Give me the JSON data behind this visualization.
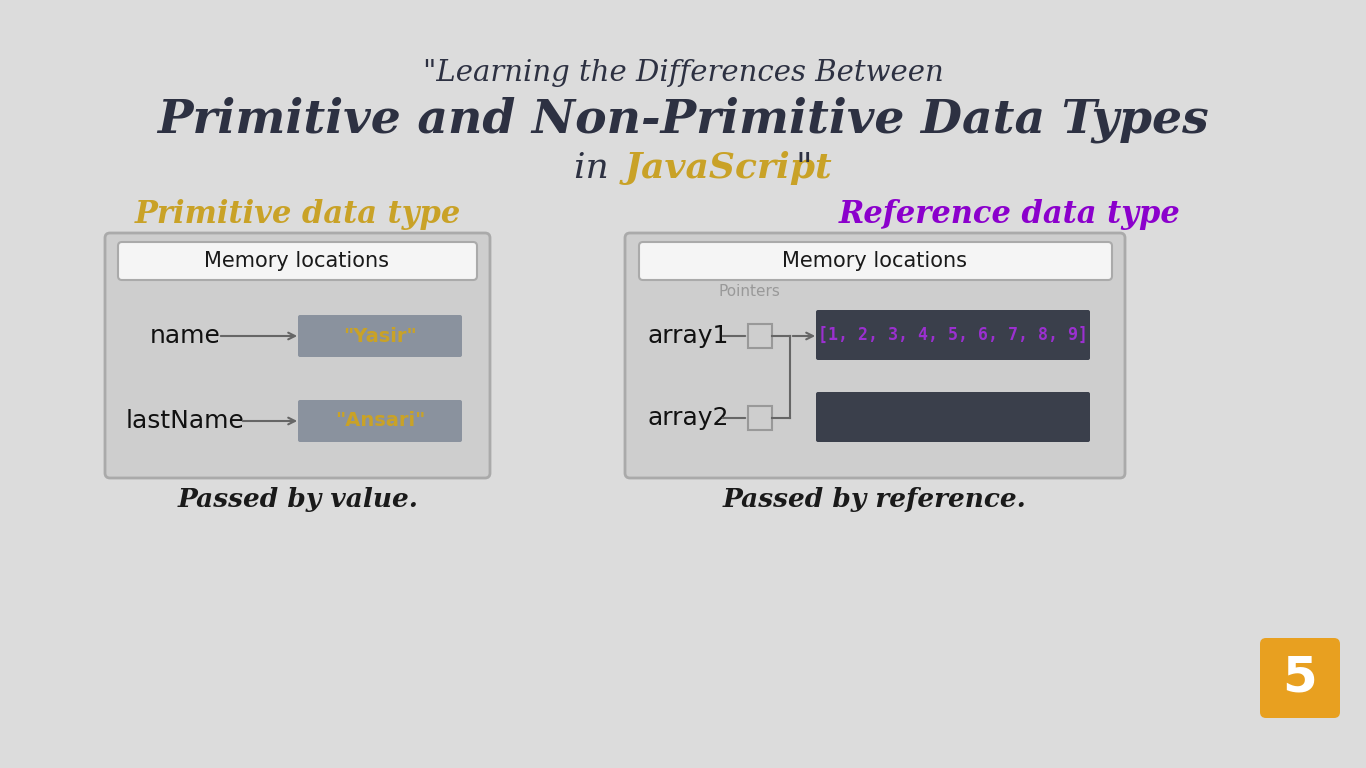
{
  "bg_color": "#dcdcdc",
  "title_line1": "\"Learning the Differences Between",
  "title_line2": "Primitive and Non-Primitive Data Types",
  "title_line3_a": "in ",
  "title_line3_b": "JavaScript",
  "title_line3_c": "\"",
  "title_color": "#2d3142",
  "javascript_color": "#c9a227",
  "left_label": "Primitive data type",
  "left_label_color": "#c9a227",
  "right_label": "Reference data type",
  "right_label_color": "#8b00cc",
  "memory_locations_text": "Memory locations",
  "left_vars": [
    "name",
    "lastName"
  ],
  "left_vals": [
    "\"Yasir\"",
    "\"Ansari\""
  ],
  "val_color": "#c9a227",
  "box_fill_prim": "#8a929e",
  "right_vars": [
    "array1",
    "array2"
  ],
  "array_val_text": "[1, 2, 3, 4, 5, 6, 7, 8, 9]",
  "array_val_color": "#9b30d0",
  "box_fill_ref": "#3a3f4b",
  "pointers_text": "Pointers",
  "left_bottom_text": "Passed by value.",
  "right_bottom_text": "Passed by reference.",
  "bottom_text_color": "#1a1a1a",
  "outer_box_edge": "#aaaaaa",
  "outer_box_face": "#cecece",
  "inner_header_face": "#f5f5f5",
  "arrow_color": "#666666",
  "html5_badge_bg": "#e8a020",
  "html5_badge_text": "5",
  "html5_badge_text_color": "#ffffff"
}
